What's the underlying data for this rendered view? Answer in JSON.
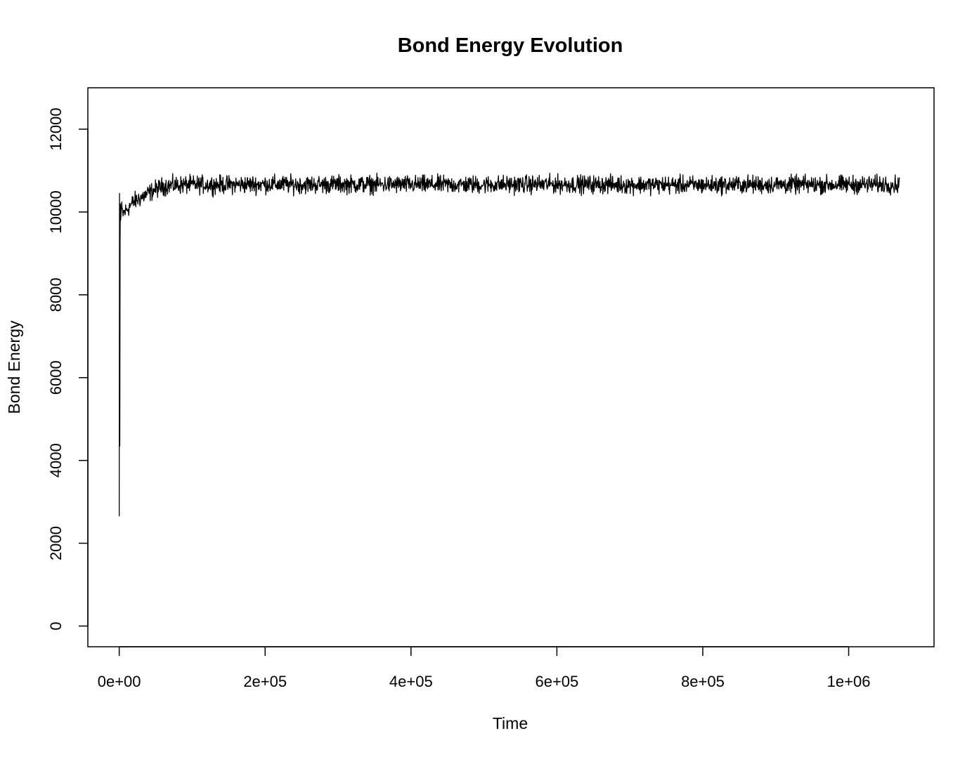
{
  "chart_data": {
    "type": "line",
    "title": "Bond Energy Evolution",
    "xlabel": "Time",
    "ylabel": "Bond Energy",
    "xlim": [
      -43000,
      1117000
    ],
    "ylim": [
      -500,
      13000
    ],
    "x_ticks": [
      0,
      200000,
      400000,
      600000,
      800000,
      1000000
    ],
    "x_tick_labels": [
      "0e+00",
      "2e+05",
      "4e+05",
      "6e+05",
      "8e+05",
      "1e+06"
    ],
    "y_ticks": [
      0,
      2000,
      4000,
      6000,
      8000,
      10000,
      12000
    ],
    "y_tick_labels": [
      "0",
      "2000",
      "4000",
      "6000",
      "8000",
      "10000",
      "12000"
    ],
    "grid": false,
    "legend": false,
    "line_color": "#000000",
    "series": [
      {
        "x": [
          0,
          400,
          800,
          1200,
          1600,
          2000,
          3000,
          5000,
          10000,
          15000,
          20000,
          30000,
          40000,
          50000,
          60000,
          70000,
          80000,
          100000,
          150000,
          200000,
          250000,
          300000,
          400000,
          500000,
          600000,
          700000,
          800000,
          850000,
          900000,
          1000000,
          1050000,
          1070000
        ],
        "y": [
          2650,
          10450,
          4350,
          9300,
          10200,
          9800,
          10100,
          9950,
          10050,
          10150,
          10250,
          10350,
          10450,
          10550,
          10620,
          10640,
          10650,
          10660,
          10660,
          10670,
          10660,
          10670,
          10660,
          10660,
          10670,
          10660,
          10650,
          10660,
          10660,
          10660,
          10670,
          10650
        ],
        "noise_amplitude": 250
      }
    ]
  }
}
